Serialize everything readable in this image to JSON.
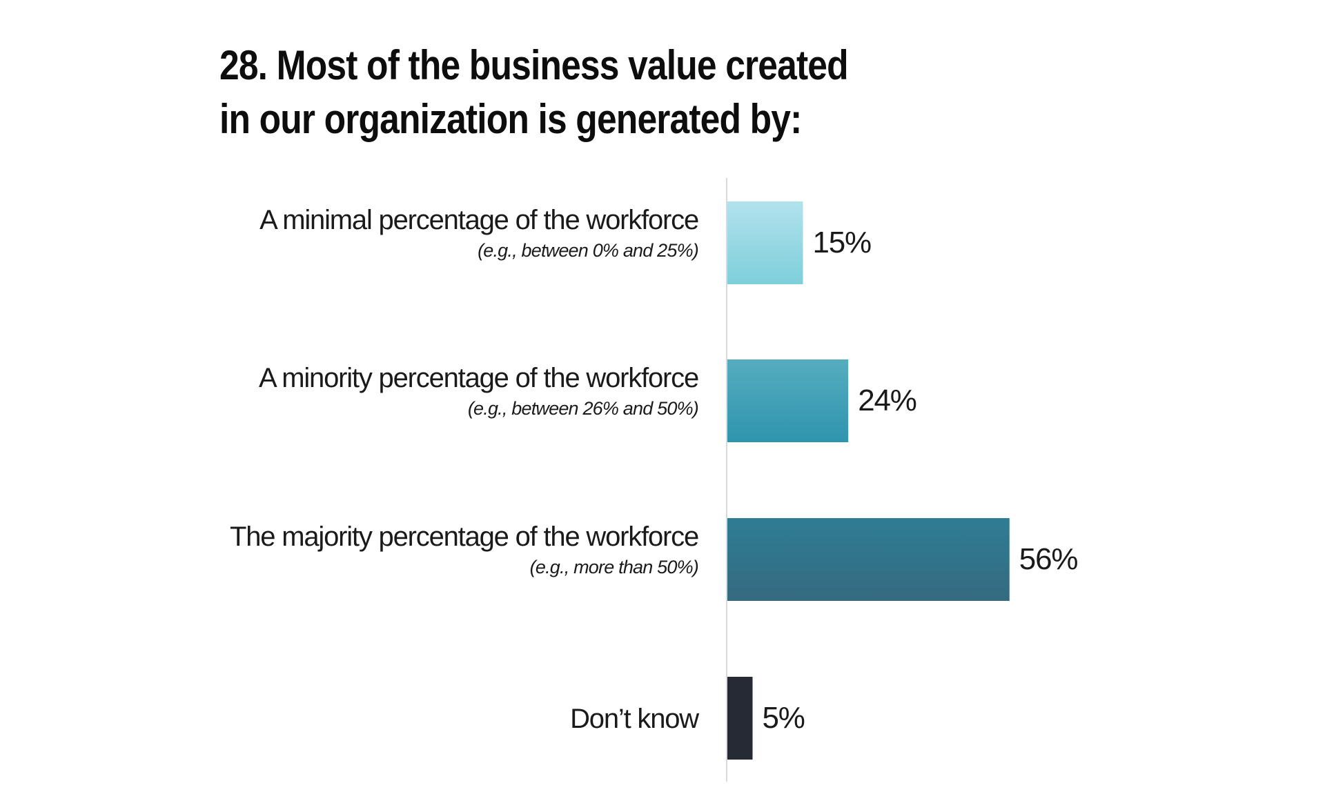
{
  "chart_data": {
    "type": "bar",
    "orientation": "horizontal",
    "title_lines": [
      "28. Most of the business value created",
      "in our organization is generated by:"
    ],
    "categories": [
      "A minimal percentage of the workforce",
      "A minority percentage of the workforce",
      "The majority percentage of the workforce",
      "Don’t know"
    ],
    "subcategories": [
      "(e.g., between 0% and 25%)",
      "(e.g., between 26% and 50%)",
      "(e.g., more than 50%)",
      ""
    ],
    "values": [
      15,
      24,
      56,
      5
    ],
    "value_labels": [
      "15%",
      "24%",
      "56%",
      "5%"
    ],
    "unit": "%",
    "xlim": [
      0,
      100
    ],
    "grid": false,
    "legend": "none",
    "colors": [
      [
        "#b1e2ec",
        "#7dcfdb"
      ],
      [
        "#55adbf",
        "#2f94ae"
      ],
      [
        "#2e7d94",
        "#356a80"
      ],
      [
        "#262a34",
        "#262a34"
      ]
    ],
    "baseline_color": "#d9d9d9"
  }
}
